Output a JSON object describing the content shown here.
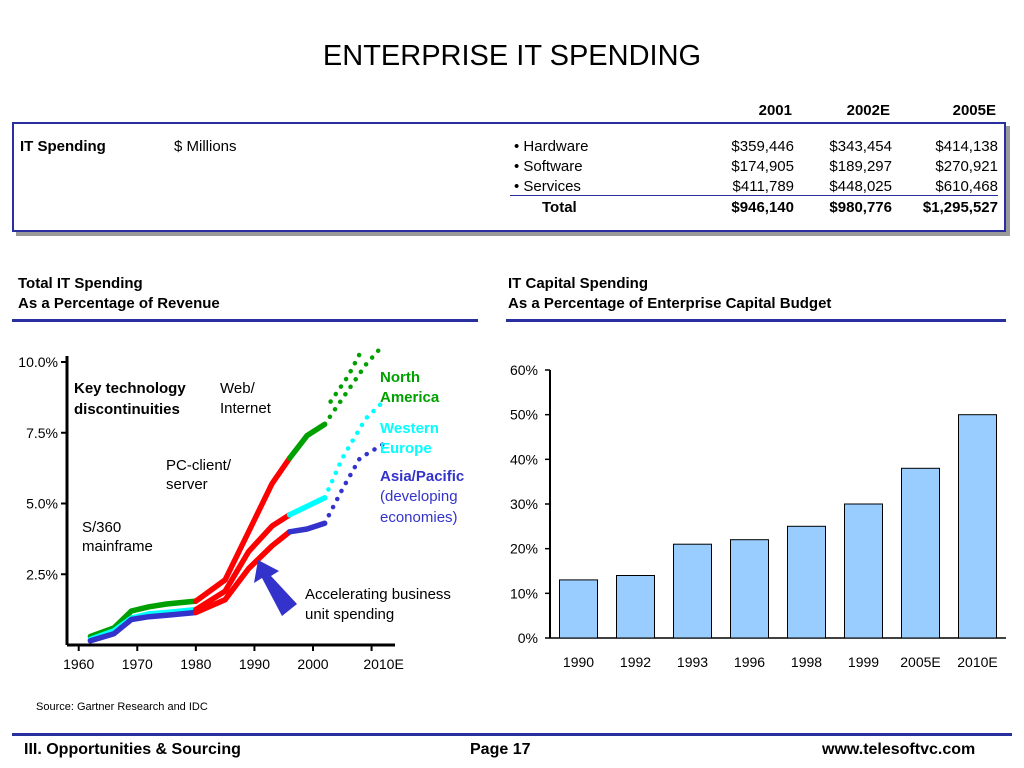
{
  "title": "ENTERPRISE IT SPENDING",
  "table": {
    "years": [
      "2001",
      "2002E",
      "2005E"
    ],
    "row_label": "IT Spending",
    "unit": "$ Millions",
    "rows": [
      {
        "label": "• Hardware",
        "values": [
          "$359,446",
          "$343,454",
          "$414,138"
        ]
      },
      {
        "label": "• Software",
        "values": [
          "$174,905",
          "$189,297",
          "$270,921"
        ]
      },
      {
        "label": "• Services",
        "values": [
          "$411,789",
          "$448,025",
          "$610,468"
        ]
      }
    ],
    "total_label": "Total",
    "total_values": [
      "$946,140",
      "$980,776",
      "$1,295,527"
    ]
  },
  "left_chart_title": {
    "line1": "Total IT Spending",
    "line2": "As a Percentage of Revenue"
  },
  "right_chart_title": {
    "line1": "IT Capital Spending",
    "line2": "As a Percentage of Enterprise Capital Budget"
  },
  "annotations": {
    "key_line1": "Key technology",
    "key_line2": "discontinuities",
    "web_line1": "Web/",
    "web_line2": "Internet",
    "pc_line1": "PC-client/",
    "pc_line2": "server",
    "s360_line1": "S/360",
    "s360_line2": "mainframe",
    "accel_line1": "Accelerating business",
    "accel_line2": "unit spending"
  },
  "legend": {
    "na_line1": "North",
    "na_line2": "America",
    "we_line1": "Western",
    "we_line2": "Europe",
    "ap_line1": "Asia/Pacific",
    "ap_line2": "(developing",
    "ap_line3": "economies)"
  },
  "colors": {
    "north_america": "#00a000",
    "western_europe": "#00ffff",
    "asia_pacific": "#3333cc",
    "red": "#ff0000",
    "bar_fill": "#99ccff",
    "rule": "#2a2fa0"
  },
  "chart_data": [
    {
      "type": "line",
      "title": "Total IT Spending As a Percentage of Revenue",
      "y_tick_labels": [
        "2.5%",
        "5.0%",
        "7.5%",
        "10.0%"
      ],
      "x_tick_labels": [
        "1960",
        "1970",
        "1980",
        "1990",
        "2000",
        "2010E"
      ],
      "ylim": [
        0,
        10
      ],
      "xlim": [
        1958,
        2014
      ],
      "series": [
        {
          "name": "North America",
          "color": "#00a000",
          "points": [
            [
              1962,
              0.3
            ],
            [
              1966,
              0.6
            ],
            [
              1969,
              1.2
            ],
            [
              1972,
              1.35
            ],
            [
              1975,
              1.45
            ],
            [
              1980,
              1.55
            ],
            [
              1985,
              2.3
            ],
            [
              1989,
              4.0
            ],
            [
              1993,
              5.7
            ],
            [
              1996,
              6.6
            ],
            [
              1999,
              7.4
            ],
            [
              2002,
              7.8
            ]
          ],
          "projection": [
            [
              2002,
              7.8
            ],
            [
              2004,
              8.4
            ],
            [
              2007,
              9.3
            ],
            [
              2009,
              9.9
            ],
            [
              2012,
              10.6
            ]
          ]
        },
        {
          "name": "Western Europe",
          "color": "#00ffff",
          "points": [
            [
              1962,
              0.2
            ],
            [
              1966,
              0.5
            ],
            [
              1969,
              0.95
            ],
            [
              1972,
              1.1
            ],
            [
              1975,
              1.15
            ],
            [
              1980,
              1.25
            ],
            [
              1985,
              1.9
            ],
            [
              1989,
              3.3
            ],
            [
              1993,
              4.2
            ],
            [
              1996,
              4.6
            ],
            [
              1999,
              4.9
            ],
            [
              2002,
              5.2
            ]
          ],
          "projection": [
            [
              2002,
              5.2
            ],
            [
              2005,
              6.6
            ],
            [
              2009,
              8.0
            ],
            [
              2012,
              8.6
            ]
          ]
        },
        {
          "name": "Asia/Pacific",
          "color": "#3333cc",
          "points": [
            [
              1962,
              0.15
            ],
            [
              1966,
              0.4
            ],
            [
              1969,
              0.9
            ],
            [
              1972,
              1.0
            ],
            [
              1975,
              1.05
            ],
            [
              1980,
              1.15
            ],
            [
              1985,
              1.6
            ],
            [
              1989,
              2.7
            ],
            [
              1993,
              3.5
            ],
            [
              1996,
              4.0
            ],
            [
              1999,
              4.1
            ],
            [
              2002,
              4.3
            ]
          ],
          "projection": [
            [
              2002,
              4.3
            ],
            [
              2005,
              5.5
            ],
            [
              2008,
              6.6
            ],
            [
              2012,
              7.1
            ]
          ]
        }
      ]
    },
    {
      "type": "bar",
      "title": "IT Capital Spending As a Percentage of Enterprise Capital Budget",
      "categories": [
        "1990",
        "1992",
        "1993",
        "1996",
        "1998",
        "1999",
        "2005E",
        "2010E"
      ],
      "values": [
        13,
        14,
        21,
        22,
        25,
        30,
        38,
        50
      ],
      "y_tick_labels": [
        "0%",
        "10%",
        "20%",
        "30%",
        "40%",
        "50%",
        "60%"
      ],
      "ylim": [
        0,
        60
      ]
    }
  ],
  "source": "Source:  Gartner Research and IDC",
  "footer": {
    "left": "III. Opportunities & Sourcing",
    "center": "Page 17",
    "right": "www.telesoftvc.com"
  }
}
